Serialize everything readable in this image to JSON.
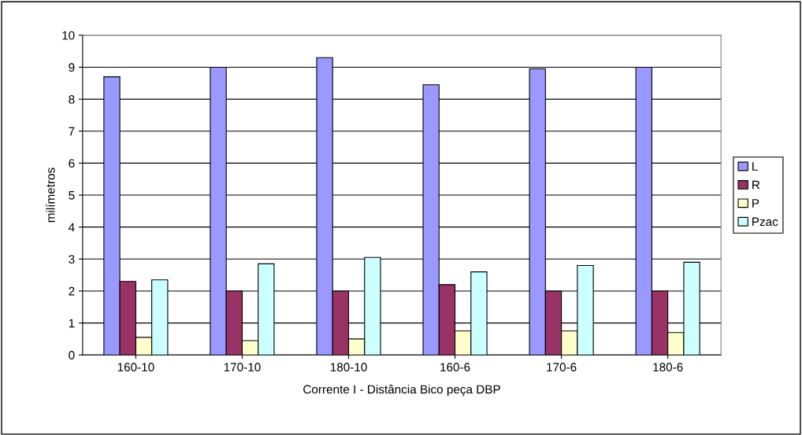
{
  "chart_data": {
    "type": "bar",
    "xlabel": "Corrente I - Distância Bico peça DBP",
    "ylabel": "milímetros",
    "categories": [
      "160-10",
      "170-10",
      "180-10",
      "160-6",
      "170-6",
      "180-6"
    ],
    "series": [
      {
        "name": "L",
        "color": "#9999ff",
        "values": [
          8.7,
          9.0,
          9.3,
          8.45,
          8.95,
          9.0
        ]
      },
      {
        "name": "R",
        "color": "#993366",
        "values": [
          2.3,
          2.0,
          2.0,
          2.2,
          2.0,
          2.0
        ]
      },
      {
        "name": "P",
        "color": "#ffffcc",
        "values": [
          0.55,
          0.45,
          0.5,
          0.75,
          0.75,
          0.7
        ]
      },
      {
        "name": "Pzac",
        "color": "#ccffff",
        "values": [
          2.35,
          2.85,
          3.05,
          2.6,
          2.8,
          2.9
        ]
      }
    ],
    "ylim": [
      0,
      10
    ],
    "yticks": [
      0,
      1,
      2,
      3,
      4,
      5,
      6,
      7,
      8,
      9,
      10
    ],
    "grid": "y",
    "legend": "right"
  }
}
